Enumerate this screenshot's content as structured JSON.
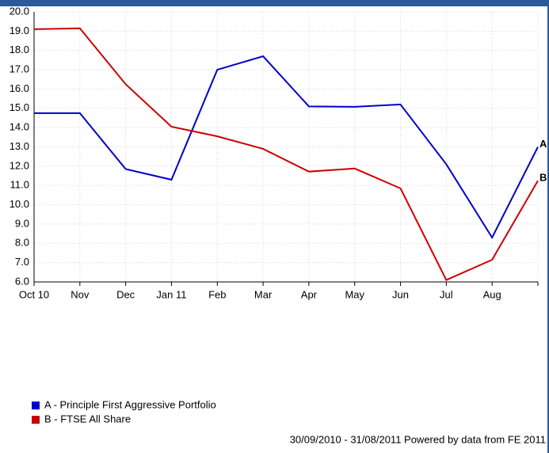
{
  "chart_data": {
    "type": "line",
    "categories": [
      "Oct 10",
      "Nov",
      "Dec",
      "Jan 11",
      "Feb",
      "Mar",
      "Apr",
      "May",
      "Jun",
      "Jul",
      "Aug",
      null
    ],
    "series": [
      {
        "name": "A - Principle First Aggressive Portfolio",
        "end_label": "A",
        "color": "#0000cc",
        "values": [
          14.75,
          14.75,
          11.85,
          11.3,
          17.0,
          17.7,
          15.1,
          15.08,
          15.2,
          12.1,
          8.3,
          13.0
        ]
      },
      {
        "name": "B - FTSE All Share",
        "end_label": "B",
        "color": "#cc0000",
        "values": [
          19.1,
          19.15,
          16.25,
          14.05,
          13.55,
          12.9,
          11.72,
          11.88,
          10.85,
          6.1,
          7.15,
          11.25
        ]
      }
    ],
    "ylim": [
      6,
      20
    ],
    "yticks": [
      {
        "value": 6,
        "label": "6.0"
      },
      {
        "value": 7,
        "label": "7.0"
      },
      {
        "value": 8,
        "label": "8.0"
      },
      {
        "value": 9,
        "label": "9.0"
      },
      {
        "value": 10,
        "label": "10.0"
      },
      {
        "value": 11,
        "label": "11.0"
      },
      {
        "value": 12,
        "label": "12.0"
      },
      {
        "value": 13,
        "label": "13.0"
      },
      {
        "value": 14,
        "label": "14.0"
      },
      {
        "value": 15,
        "label": "15.0"
      },
      {
        "value": 16,
        "label": "16.0"
      },
      {
        "value": 17,
        "label": "17.0"
      },
      {
        "value": 18,
        "label": "18.0"
      },
      {
        "value": 19,
        "label": "19.0"
      },
      {
        "value": 20,
        "label": "20.0"
      }
    ],
    "grid": true,
    "footer": "30/09/2010 - 31/08/2011 Powered by data from FE 2011"
  }
}
